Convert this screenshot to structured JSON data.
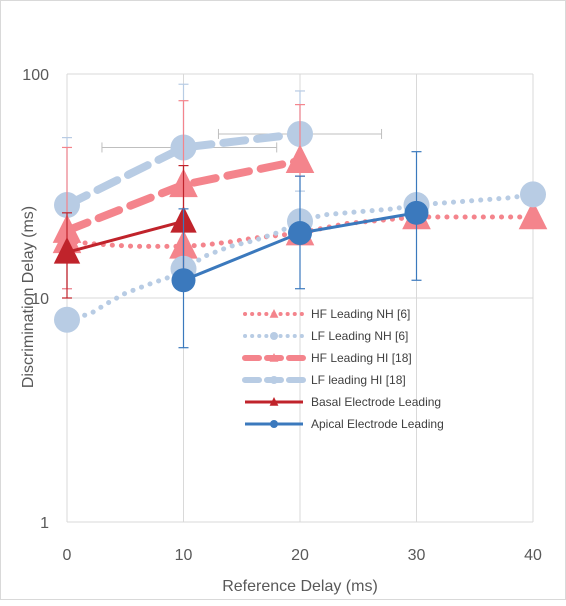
{
  "chart_data": {
    "type": "line",
    "title": "",
    "xlabel": "Reference Delay (ms)",
    "ylabel": "Discrimination Delay (ms)",
    "xlim": [
      0,
      40
    ],
    "ylim": [
      1,
      100
    ],
    "yscale": "log",
    "grid": "major gridlines on both axes",
    "legend_position": "lower-right inside plot",
    "x_ticks": [
      "0",
      "10",
      "20",
      "30",
      "40"
    ],
    "y_ticks": [
      "1",
      "10",
      "100"
    ],
    "series": [
      {
        "name": "HF Leading NH [6]",
        "color": "#f4848c",
        "line": "dotted",
        "marker": "triangle",
        "points": [
          {
            "x": 0,
            "y": 18
          },
          {
            "x": 2,
            "y": 17.5
          },
          {
            "x": 4,
            "y": 17.2
          },
          {
            "x": 6,
            "y": 17
          },
          {
            "x": 8,
            "y": 17
          },
          {
            "x": 10,
            "y": 17
          },
          {
            "x": 12,
            "y": 17.3
          },
          {
            "x": 14,
            "y": 17.8
          },
          {
            "x": 16,
            "y": 18.5
          },
          {
            "x": 18,
            "y": 19
          },
          {
            "x": 20,
            "y": 19.5
          },
          {
            "x": 22,
            "y": 20.5
          },
          {
            "x": 24,
            "y": 21.5
          },
          {
            "x": 26,
            "y": 22
          },
          {
            "x": 28,
            "y": 22.5
          },
          {
            "x": 30,
            "y": 23
          },
          {
            "x": 32,
            "y": 23
          },
          {
            "x": 34,
            "y": 23
          },
          {
            "x": 36,
            "y": 23
          },
          {
            "x": 38,
            "y": 23
          },
          {
            "x": 40,
            "y": 23
          }
        ]
      },
      {
        "name": "LF Leading NH [6]",
        "color": "#b8cce4",
        "line": "dotted",
        "marker": "circle",
        "points": [
          {
            "x": 0,
            "y": 8
          },
          {
            "x": 2,
            "y": 8.5
          },
          {
            "x": 3.5,
            "y": 9.5
          },
          {
            "x": 5,
            "y": 10.5
          },
          {
            "x": 7,
            "y": 11.5
          },
          {
            "x": 9,
            "y": 12.5
          },
          {
            "x": 10,
            "y": 13.5
          },
          {
            "x": 12,
            "y": 15.5
          },
          {
            "x": 14,
            "y": 17
          },
          {
            "x": 16,
            "y": 18
          },
          {
            "x": 18,
            "y": 19.5
          },
          {
            "x": 20,
            "y": 22
          },
          {
            "x": 22,
            "y": 23.5
          },
          {
            "x": 24,
            "y": 24
          },
          {
            "x": 26,
            "y": 24.5
          },
          {
            "x": 28,
            "y": 25
          },
          {
            "x": 30,
            "y": 26
          },
          {
            "x": 32,
            "y": 26.5
          },
          {
            "x": 34,
            "y": 27
          },
          {
            "x": 36,
            "y": 27.5
          },
          {
            "x": 38,
            "y": 28
          },
          {
            "x": 40,
            "y": 29
          }
        ]
      },
      {
        "name": "HF Leading HI [18]",
        "color": "#f4848c",
        "line": "dashed",
        "marker": "triangle",
        "points": [
          {
            "x": 0,
            "y": 20,
            "err_low": 11,
            "err_high": 47
          },
          {
            "x": 10,
            "y": 32,
            "err_low": 17,
            "err_high": 76
          },
          {
            "x": 20,
            "y": 41,
            "err_low": 35,
            "err_high": 73
          }
        ]
      },
      {
        "name": "LF leading HI [18]",
        "color": "#b8cce4",
        "line": "dashed",
        "marker": "circle",
        "points": [
          {
            "x": 0,
            "y": 26,
            "err_low": 11,
            "err_high": 52
          },
          {
            "x": 10,
            "y": 47,
            "err_low": 23,
            "err_high": 90,
            "xerr_low": 3,
            "xerr_high": 18
          },
          {
            "x": 20,
            "y": 54,
            "err_low": 30,
            "err_high": 84,
            "xerr_low": 13,
            "xerr_high": 27
          }
        ]
      },
      {
        "name": "Basal Electrode Leading",
        "color": "#c0232b",
        "line": "solid",
        "marker": "triangle",
        "points": [
          {
            "x": 0,
            "y": 16,
            "err_low": 10,
            "err_high": 24
          },
          {
            "x": 10,
            "y": 22,
            "err_low": 13,
            "err_high": 39
          }
        ]
      },
      {
        "name": "Apical Electrode Leading",
        "color": "#3b79bd",
        "line": "solid",
        "marker": "circle",
        "points": [
          {
            "x": 10,
            "y": 12,
            "err_low": 6,
            "err_high": 25
          },
          {
            "x": 20,
            "y": 19.5,
            "err_low": 11,
            "err_high": 35
          },
          {
            "x": 30,
            "y": 24,
            "err_low": 12,
            "err_high": 45
          }
        ]
      }
    ]
  }
}
